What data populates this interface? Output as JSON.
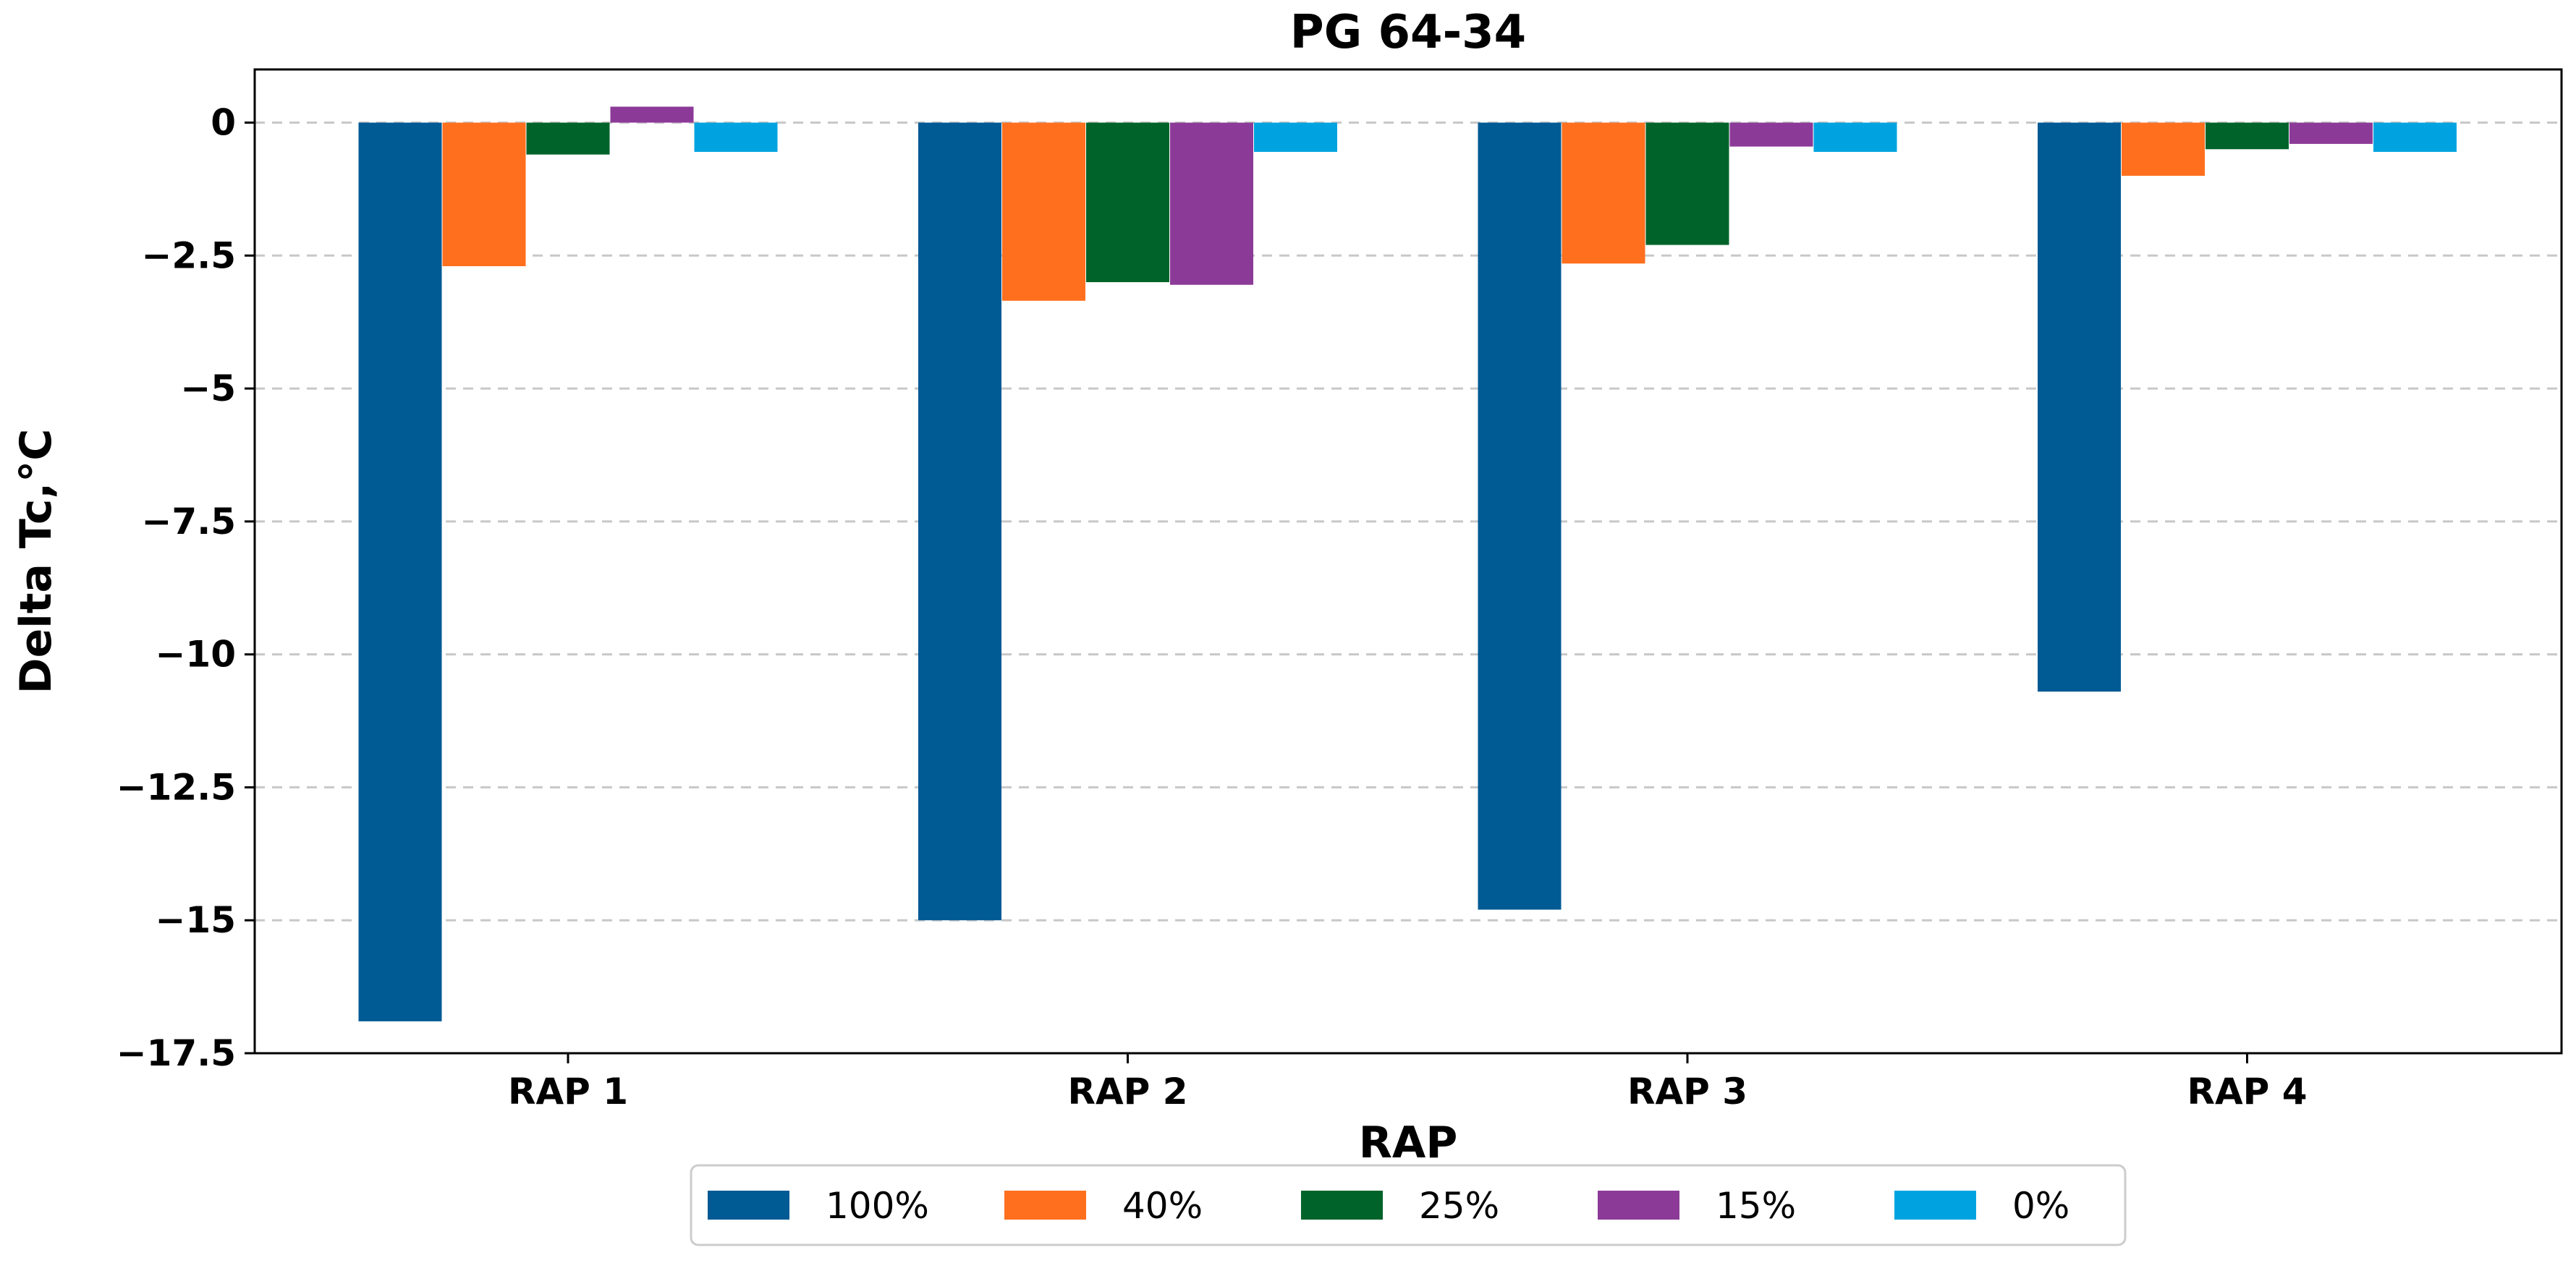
{
  "chart_data": {
    "type": "bar",
    "title": "PG 64-34",
    "xlabel": "RAP",
    "ylabel": "Delta Tc,°C",
    "categories": [
      "RAP 1",
      "RAP 2",
      "RAP 3",
      "RAP 4"
    ],
    "series": [
      {
        "name": "100%",
        "color": "#005a94",
        "values": [
          -16.9,
          -15.0,
          -14.8,
          -10.7
        ]
      },
      {
        "name": "40%",
        "color": "#ff6f1e",
        "values": [
          -2.7,
          -3.35,
          -2.65,
          -1.0
        ]
      },
      {
        "name": "25%",
        "color": "#00632a",
        "values": [
          -0.6,
          -3.0,
          -2.3,
          -0.5
        ]
      },
      {
        "name": "15%",
        "color": "#8c3a98",
        "values": [
          0.3,
          -3.05,
          -0.45,
          -0.4
        ]
      },
      {
        "name": "0%",
        "color": "#00a3e0",
        "values": [
          -0.55,
          -0.55,
          -0.55,
          -0.55
        ]
      }
    ],
    "ylim": [
      -17.5,
      1.0
    ],
    "yticks": [
      0,
      -2.5,
      -5,
      -7.5,
      -10,
      -12.5,
      -15,
      -17.5
    ],
    "ytick_labels": [
      "0",
      "−2.5",
      "−5",
      "−7.5",
      "−10",
      "−12.5",
      "−15",
      "−17.5"
    ],
    "grid": "horizontal-dashed",
    "legend_position": "bottom-center"
  }
}
